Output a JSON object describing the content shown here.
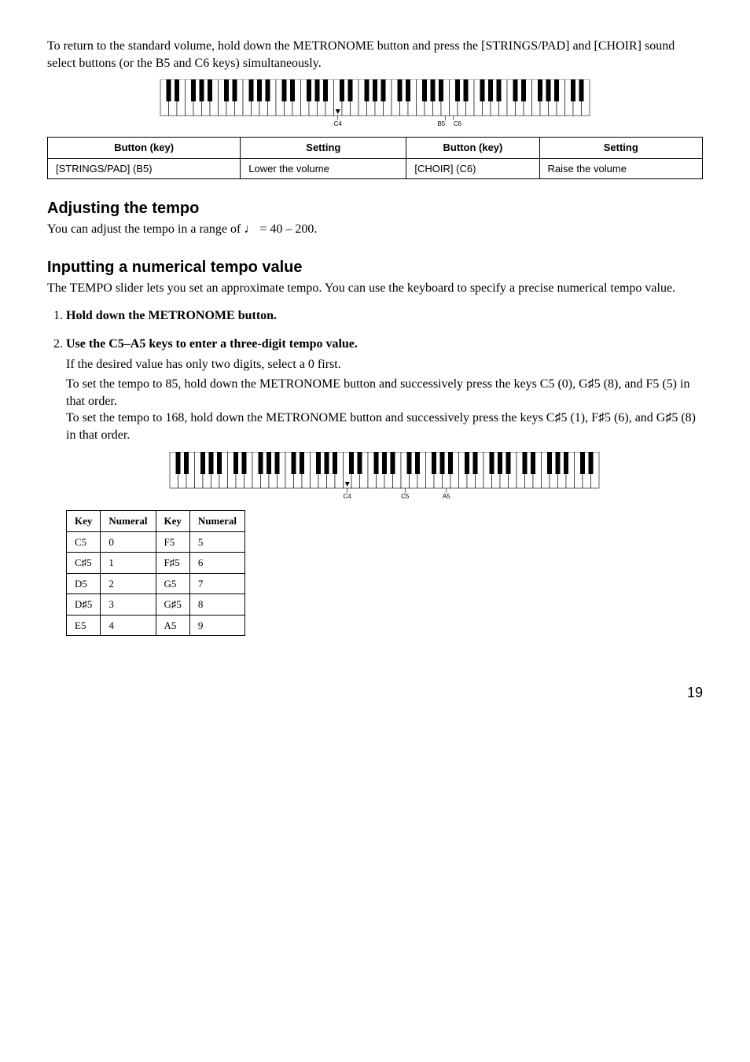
{
  "intro": "To return to the standard volume, hold down the METRONOME button and press the [STRINGS/PAD] and [CHOIR] sound select buttons (or the B5 and C6 keys) simultaneously.",
  "kb1_labels": {
    "c4": "C4",
    "b5": "B5",
    "c6": "C6"
  },
  "table1": {
    "headers": [
      "Button (key)",
      "Setting",
      "Button (key)",
      "Setting"
    ],
    "row": [
      "[STRINGS/PAD] (B5)",
      "Lower the volume",
      "[CHOIR] (C6)",
      "Raise the volume"
    ]
  },
  "h_tempo": "Adjusting the tempo",
  "tempo_sub_pre": "You can adjust the tempo in a range of ",
  "tempo_sub_post": " = 40 – 200.",
  "h_input": "Inputting a numerical tempo value",
  "input_sub": "The TEMPO slider lets you set an approximate tempo. You can use the keyboard to specify a precise numerical tempo value.",
  "step1": "Hold down the METRONOME button.",
  "step2_bold": "Use the C5–A5 keys to enter a three-digit tempo value.",
  "step2_line": "If the desired value has only two digits, select a 0 first.",
  "step2_p1a": "To set the tempo to 85, hold down the METRONOME button and successively press the keys C5 (0), G",
  "step2_p1b": "5 (8), and F5 (5) in that order.",
  "step2_p2a": "To set the tempo to 168, hold down the METRONOME button and successively press the keys C",
  "step2_p2b": "5 (1), F",
  "step2_p2c": "5 (6), and G",
  "step2_p2d": "5 (8) in that order.",
  "kb2_labels": {
    "c4": "C4",
    "c5": "C5",
    "a5": "A5"
  },
  "table2": {
    "headers": [
      "Key",
      "Numeral",
      "Key",
      "Numeral"
    ],
    "rows": [
      [
        "C5",
        "0",
        "F5",
        "5"
      ],
      [
        "C♯5",
        "1",
        "F♯5",
        "6"
      ],
      [
        "D5",
        "2",
        "G5",
        "7"
      ],
      [
        "D♯5",
        "3",
        "G♯5",
        "8"
      ],
      [
        "E5",
        "4",
        "A5",
        "9"
      ]
    ]
  },
  "pagenum": "19",
  "keyboard": {
    "octaves": 7,
    "extra_white": 3,
    "white_w": 10.5,
    "height": 46,
    "black_w": 6,
    "black_h": 28,
    "stroke": "#000",
    "fill_white": "#fff",
    "fill_black": "#000"
  }
}
